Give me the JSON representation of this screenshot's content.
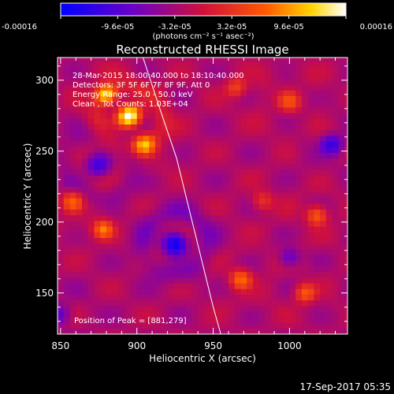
{
  "colorbar": {
    "tick_labels": [
      "-0.00016",
      "-9.6e-05",
      "-3.2e-05",
      "3.2e-05",
      "9.6e-05",
      "0.00016"
    ],
    "unit_label": "(photons cm⁻² s⁻¹ asec⁻²)"
  },
  "chart_data": {
    "type": "heatmap",
    "title": "Reconstructed RHESSI Image",
    "xlabel": "Heliocentric X (arcsec)",
    "ylabel": "Heliocentric Y (arcsec)",
    "xlim": [
      848,
      1038
    ],
    "ylim": [
      121,
      316
    ],
    "xticks": [
      850,
      900,
      950,
      1000
    ],
    "yticks": [
      150,
      200,
      250,
      300
    ],
    "color_range": [
      -0.00016,
      0.00016
    ],
    "colormap": "blue-purple-red-yellow-white",
    "info_lines": [
      "28-Mar-2015 18:00:40.000 to 18:10:40.000",
      "Detectors: 3F 5F 6F 7F 8F 9F, Att 0",
      "Energy Range: 25.0 - 50.0 keV",
      "Clean  ,  Tot Counts: 1.03E+04"
    ],
    "peak_label": "Position of Peak = [881,279]",
    "peak_position": [
      881,
      279
    ],
    "limb_curve": [
      [
        904,
        316
      ],
      [
        915,
        280
      ],
      [
        926,
        245
      ],
      [
        934,
        210
      ],
      [
        942,
        175
      ],
      [
        950,
        140
      ],
      [
        955,
        121
      ]
    ],
    "sources": [
      {
        "x": 895,
        "y": 275,
        "sigma": 13,
        "amp": 1.0
      },
      {
        "x": 880,
        "y": 290,
        "sigma": 9,
        "amp": 0.8
      },
      {
        "x": 905,
        "y": 255,
        "sigma": 10,
        "amp": 0.6
      },
      {
        "x": 858,
        "y": 215,
        "sigma": 11,
        "amp": 0.5
      },
      {
        "x": 878,
        "y": 195,
        "sigma": 8,
        "amp": 0.55
      },
      {
        "x": 968,
        "y": 160,
        "sigma": 10,
        "amp": 0.55
      },
      {
        "x": 982,
        "y": 215,
        "sigma": 9,
        "amp": 0.35
      },
      {
        "x": 1018,
        "y": 205,
        "sigma": 9,
        "amp": 0.55
      },
      {
        "x": 1010,
        "y": 150,
        "sigma": 9,
        "amp": 0.5
      },
      {
        "x": 1000,
        "y": 285,
        "sigma": 12,
        "amp": 0.4
      },
      {
        "x": 965,
        "y": 295,
        "sigma": 9,
        "amp": 0.4
      },
      {
        "x": 925,
        "y": 185,
        "sigma": 14,
        "amp": -0.75
      },
      {
        "x": 875,
        "y": 240,
        "sigma": 14,
        "amp": -0.5
      },
      {
        "x": 1028,
        "y": 255,
        "sigma": 10,
        "amp": -0.5
      },
      {
        "x": 850,
        "y": 135,
        "sigma": 10,
        "amp": -0.35
      },
      {
        "x": 1000,
        "y": 175,
        "sigma": 8,
        "amp": -0.4
      }
    ]
  },
  "timestamp": "17-Sep-2017 05:35"
}
